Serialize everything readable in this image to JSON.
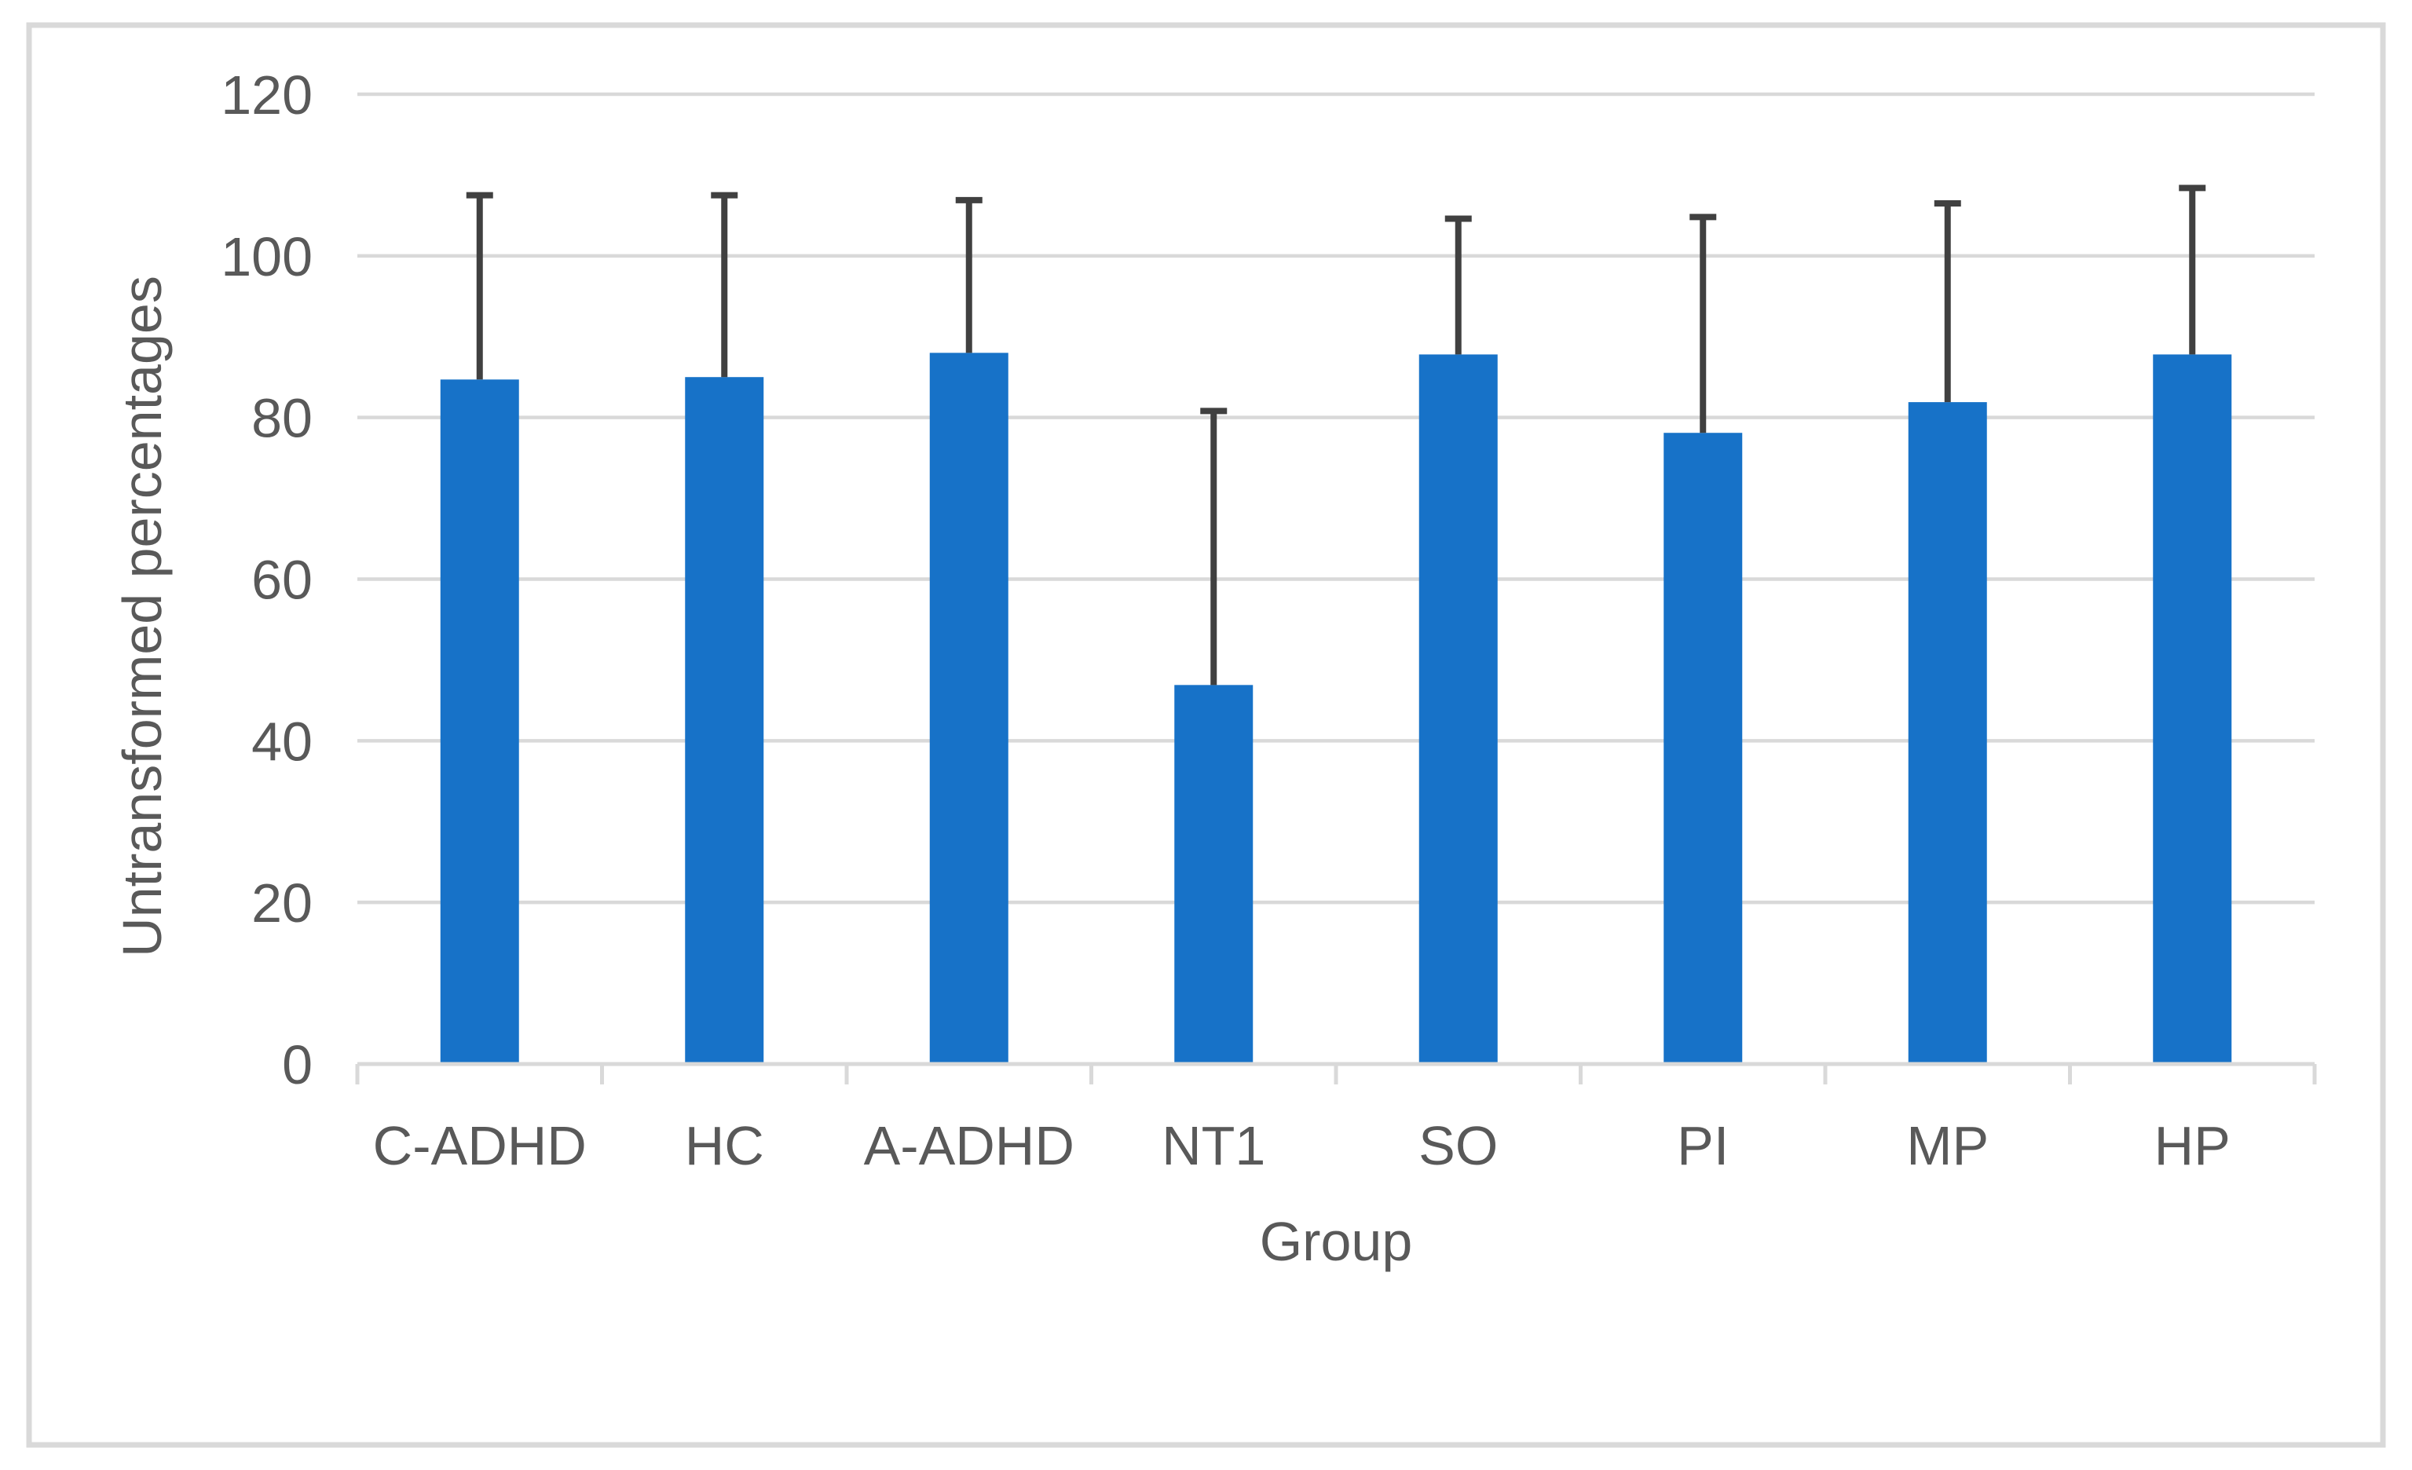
{
  "chart_data": {
    "type": "bar",
    "title": "",
    "categories": [
      "C-ADHD",
      "HC",
      "A-ADHD",
      "NT1",
      "SO",
      "PI",
      "MP",
      "HP"
    ],
    "series": [
      {
        "name": "Untransformed percentages",
        "values": [
          84.7,
          85.0,
          88.0,
          46.9,
          87.8,
          78.1,
          81.9,
          87.8
        ],
        "errors_plus": [
          22.8,
          22.5,
          18.9,
          33.9,
          16.8,
          26.7,
          24.6,
          20.6
        ]
      }
    ],
    "xlabel": "Group",
    "ylabel": "Untransformed percentages",
    "ylim": [
      0,
      120
    ],
    "yticks": [
      0,
      20,
      40,
      60,
      80,
      100,
      120
    ],
    "grid": "horizontal",
    "legend_position": "none",
    "colors": {
      "bar": "#1772c8",
      "error_bar": "#404040",
      "gridline": "#d9d9d9",
      "axis_line": "#d9d9d9",
      "tick_text": "#595959",
      "axis_title_text": "#595959",
      "figure_border": "#d9d9d9",
      "background": "#ffffff"
    }
  }
}
